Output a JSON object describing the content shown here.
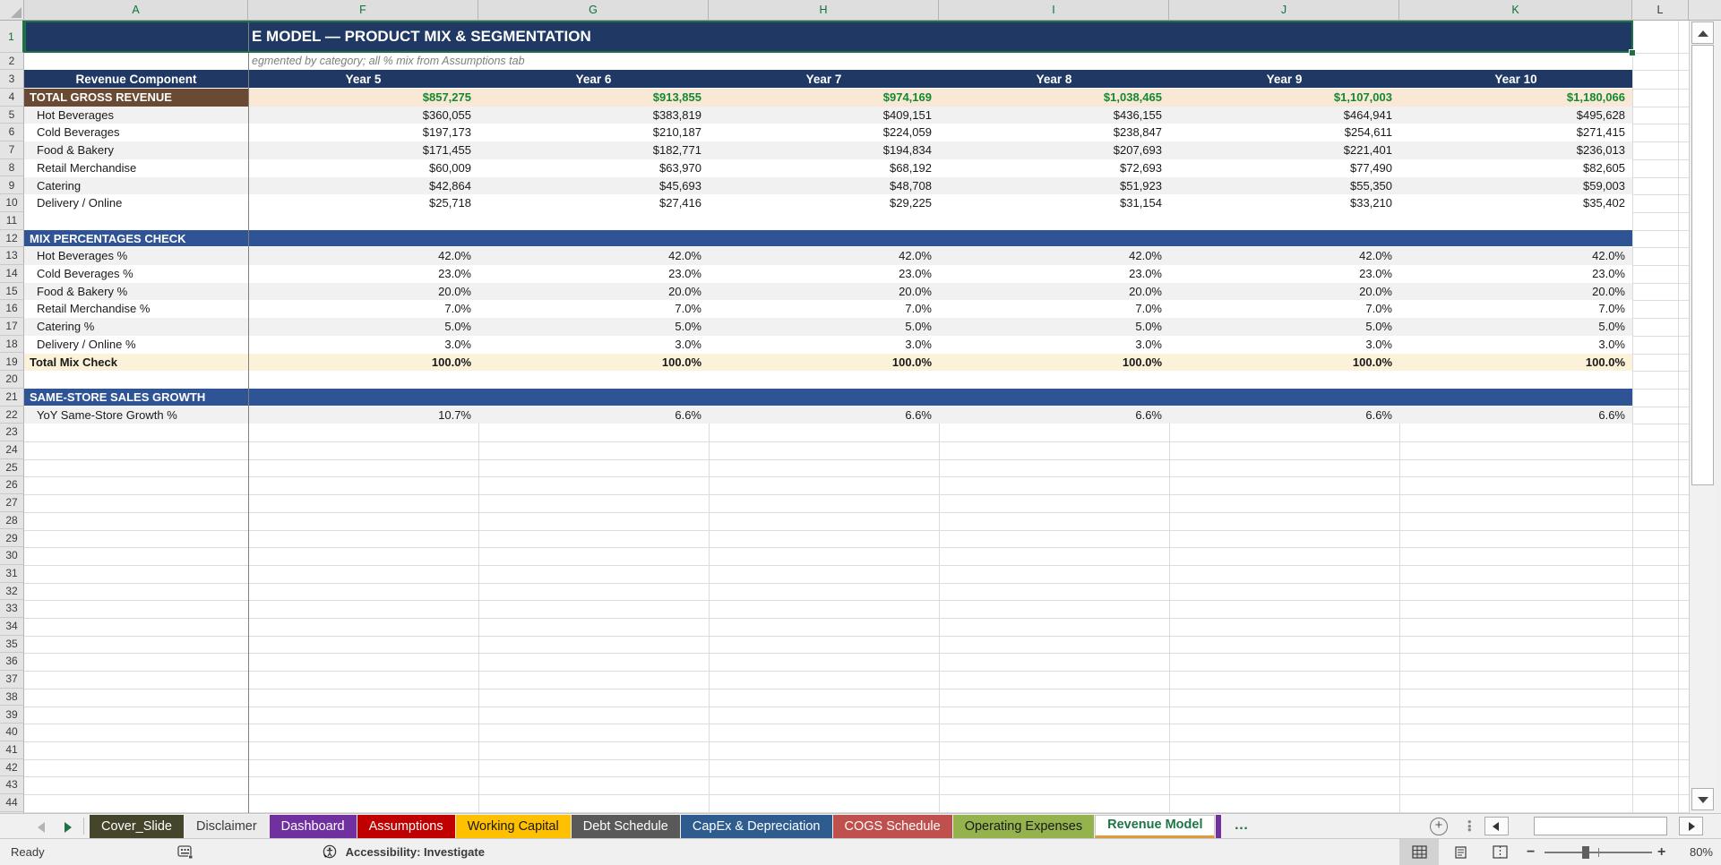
{
  "colors": {
    "navy": "#1F3864",
    "section_blue": "#2F5496",
    "total_brown": "#6B4A33",
    "total_cream": "#FAE8D7",
    "check_cream": "#FCF2DA",
    "zebra": "#F1F1F1",
    "value_green": "#118A2F",
    "selection_green": "#1E7145",
    "active_tab_green": "#1F7547",
    "active_tab_underline": "#DE9A3C"
  },
  "sheet": {
    "visible_title": "E MODEL — PRODUCT MIX & SEGMENTATION",
    "visible_subtitle": "egmented by category; all % mix from Assumptions tab",
    "column_letters": [
      "A",
      "F",
      "G",
      "H",
      "I",
      "J",
      "K",
      "L"
    ],
    "selected_columns": [
      "A",
      "F",
      "G",
      "H",
      "I",
      "J",
      "K"
    ],
    "row_count": 45,
    "header": {
      "component_label": "Revenue Component",
      "year_labels": [
        "Year 5",
        "Year 6",
        "Year 7",
        "Year 8",
        "Year 9",
        "Year 10"
      ]
    },
    "rows": [
      {
        "n": 4,
        "type": "total",
        "label": "TOTAL GROSS REVENUE",
        "values": [
          "$857,275",
          "$913,855",
          "$974,169",
          "$1,038,465",
          "$1,107,003",
          "$1,180,066"
        ]
      },
      {
        "n": 5,
        "type": "item",
        "shade": true,
        "label": "Hot Beverages",
        "values": [
          "$360,055",
          "$383,819",
          "$409,151",
          "$436,155",
          "$464,941",
          "$495,628"
        ]
      },
      {
        "n": 6,
        "type": "item",
        "shade": false,
        "label": "Cold Beverages",
        "values": [
          "$197,173",
          "$210,187",
          "$224,059",
          "$238,847",
          "$254,611",
          "$271,415"
        ]
      },
      {
        "n": 7,
        "type": "item",
        "shade": true,
        "label": "Food & Bakery",
        "values": [
          "$171,455",
          "$182,771",
          "$194,834",
          "$207,693",
          "$221,401",
          "$236,013"
        ]
      },
      {
        "n": 8,
        "type": "item",
        "shade": false,
        "label": "Retail Merchandise",
        "values": [
          "$60,009",
          "$63,970",
          "$68,192",
          "$72,693",
          "$77,490",
          "$82,605"
        ]
      },
      {
        "n": 9,
        "type": "item",
        "shade": true,
        "label": "Catering",
        "values": [
          "$42,864",
          "$45,693",
          "$48,708",
          "$51,923",
          "$55,350",
          "$59,003"
        ]
      },
      {
        "n": 10,
        "type": "item",
        "shade": false,
        "label": "Delivery / Online",
        "values": [
          "$25,718",
          "$27,416",
          "$29,225",
          "$31,154",
          "$33,210",
          "$35,402"
        ]
      },
      {
        "n": 11,
        "type": "blank"
      },
      {
        "n": 12,
        "type": "section",
        "label": "MIX PERCENTAGES CHECK"
      },
      {
        "n": 13,
        "type": "item",
        "shade": true,
        "label": "Hot Beverages %",
        "values": [
          "42.0%",
          "42.0%",
          "42.0%",
          "42.0%",
          "42.0%",
          "42.0%"
        ]
      },
      {
        "n": 14,
        "type": "item",
        "shade": false,
        "label": "Cold Beverages %",
        "values": [
          "23.0%",
          "23.0%",
          "23.0%",
          "23.0%",
          "23.0%",
          "23.0%"
        ]
      },
      {
        "n": 15,
        "type": "item",
        "shade": true,
        "label": "Food & Bakery %",
        "values": [
          "20.0%",
          "20.0%",
          "20.0%",
          "20.0%",
          "20.0%",
          "20.0%"
        ]
      },
      {
        "n": 16,
        "type": "item",
        "shade": false,
        "label": "Retail Merchandise %",
        "values": [
          "7.0%",
          "7.0%",
          "7.0%",
          "7.0%",
          "7.0%",
          "7.0%"
        ]
      },
      {
        "n": 17,
        "type": "item",
        "shade": true,
        "label": "Catering %",
        "values": [
          "5.0%",
          "5.0%",
          "5.0%",
          "5.0%",
          "5.0%",
          "5.0%"
        ]
      },
      {
        "n": 18,
        "type": "item",
        "shade": false,
        "label": "Delivery / Online %",
        "values": [
          "3.0%",
          "3.0%",
          "3.0%",
          "3.0%",
          "3.0%",
          "3.0%"
        ]
      },
      {
        "n": 19,
        "type": "check",
        "label": "Total Mix Check",
        "values": [
          "100.0%",
          "100.0%",
          "100.0%",
          "100.0%",
          "100.0%",
          "100.0%"
        ]
      },
      {
        "n": 20,
        "type": "blank"
      },
      {
        "n": 21,
        "type": "section",
        "label": "SAME-STORE SALES GROWTH"
      },
      {
        "n": 22,
        "type": "item",
        "shade": true,
        "label": "YoY Same-Store Growth %",
        "values": [
          "10.7%",
          "6.6%",
          "6.6%",
          "6.6%",
          "6.6%",
          "6.6%"
        ]
      }
    ]
  },
  "tab_bar": {
    "tabs": [
      {
        "label": "Cover_Slide",
        "bg": "#45452B",
        "fg": "#FFFFFF"
      },
      {
        "label": "Disclaimer",
        "bg": "#EBEBEB",
        "fg": "#3B3B3B"
      },
      {
        "label": "Dashboard",
        "bg": "#7030A0",
        "fg": "#FFFFFF"
      },
      {
        "label": "Assumptions",
        "bg": "#C00000",
        "fg": "#FFFFFF"
      },
      {
        "label": "Working Capital",
        "bg": "#FFC000",
        "fg": "#1A1A1A"
      },
      {
        "label": "Debt Schedule",
        "bg": "#595959",
        "fg": "#FFFFFF"
      },
      {
        "label": "CapEx & Depreciation",
        "bg": "#2E5C8F",
        "fg": "#FFFFFF"
      },
      {
        "label": "COGS Schedule",
        "bg": "#C0504D",
        "fg": "#FFFFFF"
      },
      {
        "label": "Operating Expenses",
        "bg": "#94B34C",
        "fg": "#1A1A1A"
      },
      {
        "label": "Revenue Model",
        "active": true,
        "bg": "#FFFFFF",
        "fg": "#1F7547"
      }
    ],
    "overflow_label": "…"
  },
  "status_bar": {
    "ready_label": "Ready",
    "accessibility_label": "Accessibility: Investigate",
    "zoom_label": "80%",
    "view_buttons": [
      "normal-view",
      "page-layout-view",
      "page-break-preview"
    ]
  }
}
